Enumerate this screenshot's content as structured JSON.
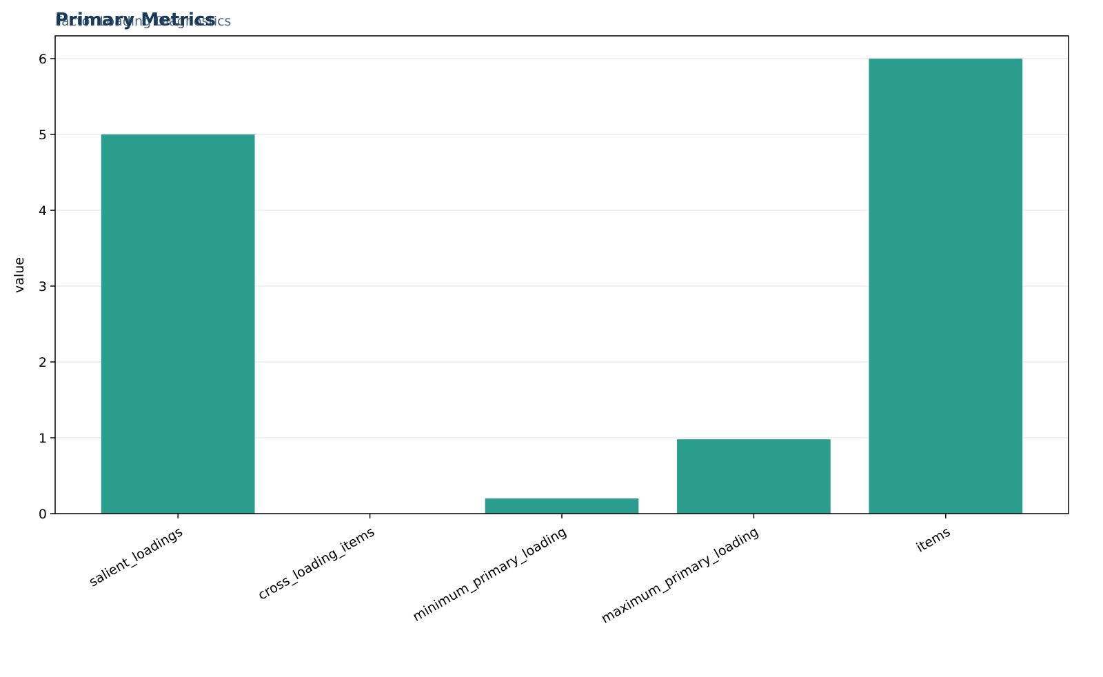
{
  "chart_data": {
    "type": "bar",
    "title": "Primary Metrics",
    "subtitle": "Factor Loading Diagnostics",
    "y_label": "value",
    "categories": [
      "salient_loadings",
      "cross_loading_items",
      "minimum_primary_loading",
      "maximum_primary_loading",
      "items"
    ],
    "values": [
      5,
      0,
      0.2,
      0.98,
      6
    ],
    "color": "#2a9d8f",
    "ylim": [
      0,
      6.3
    ],
    "yticks": [
      0,
      1,
      2,
      3,
      4,
      5,
      6
    ],
    "grid": true
  }
}
